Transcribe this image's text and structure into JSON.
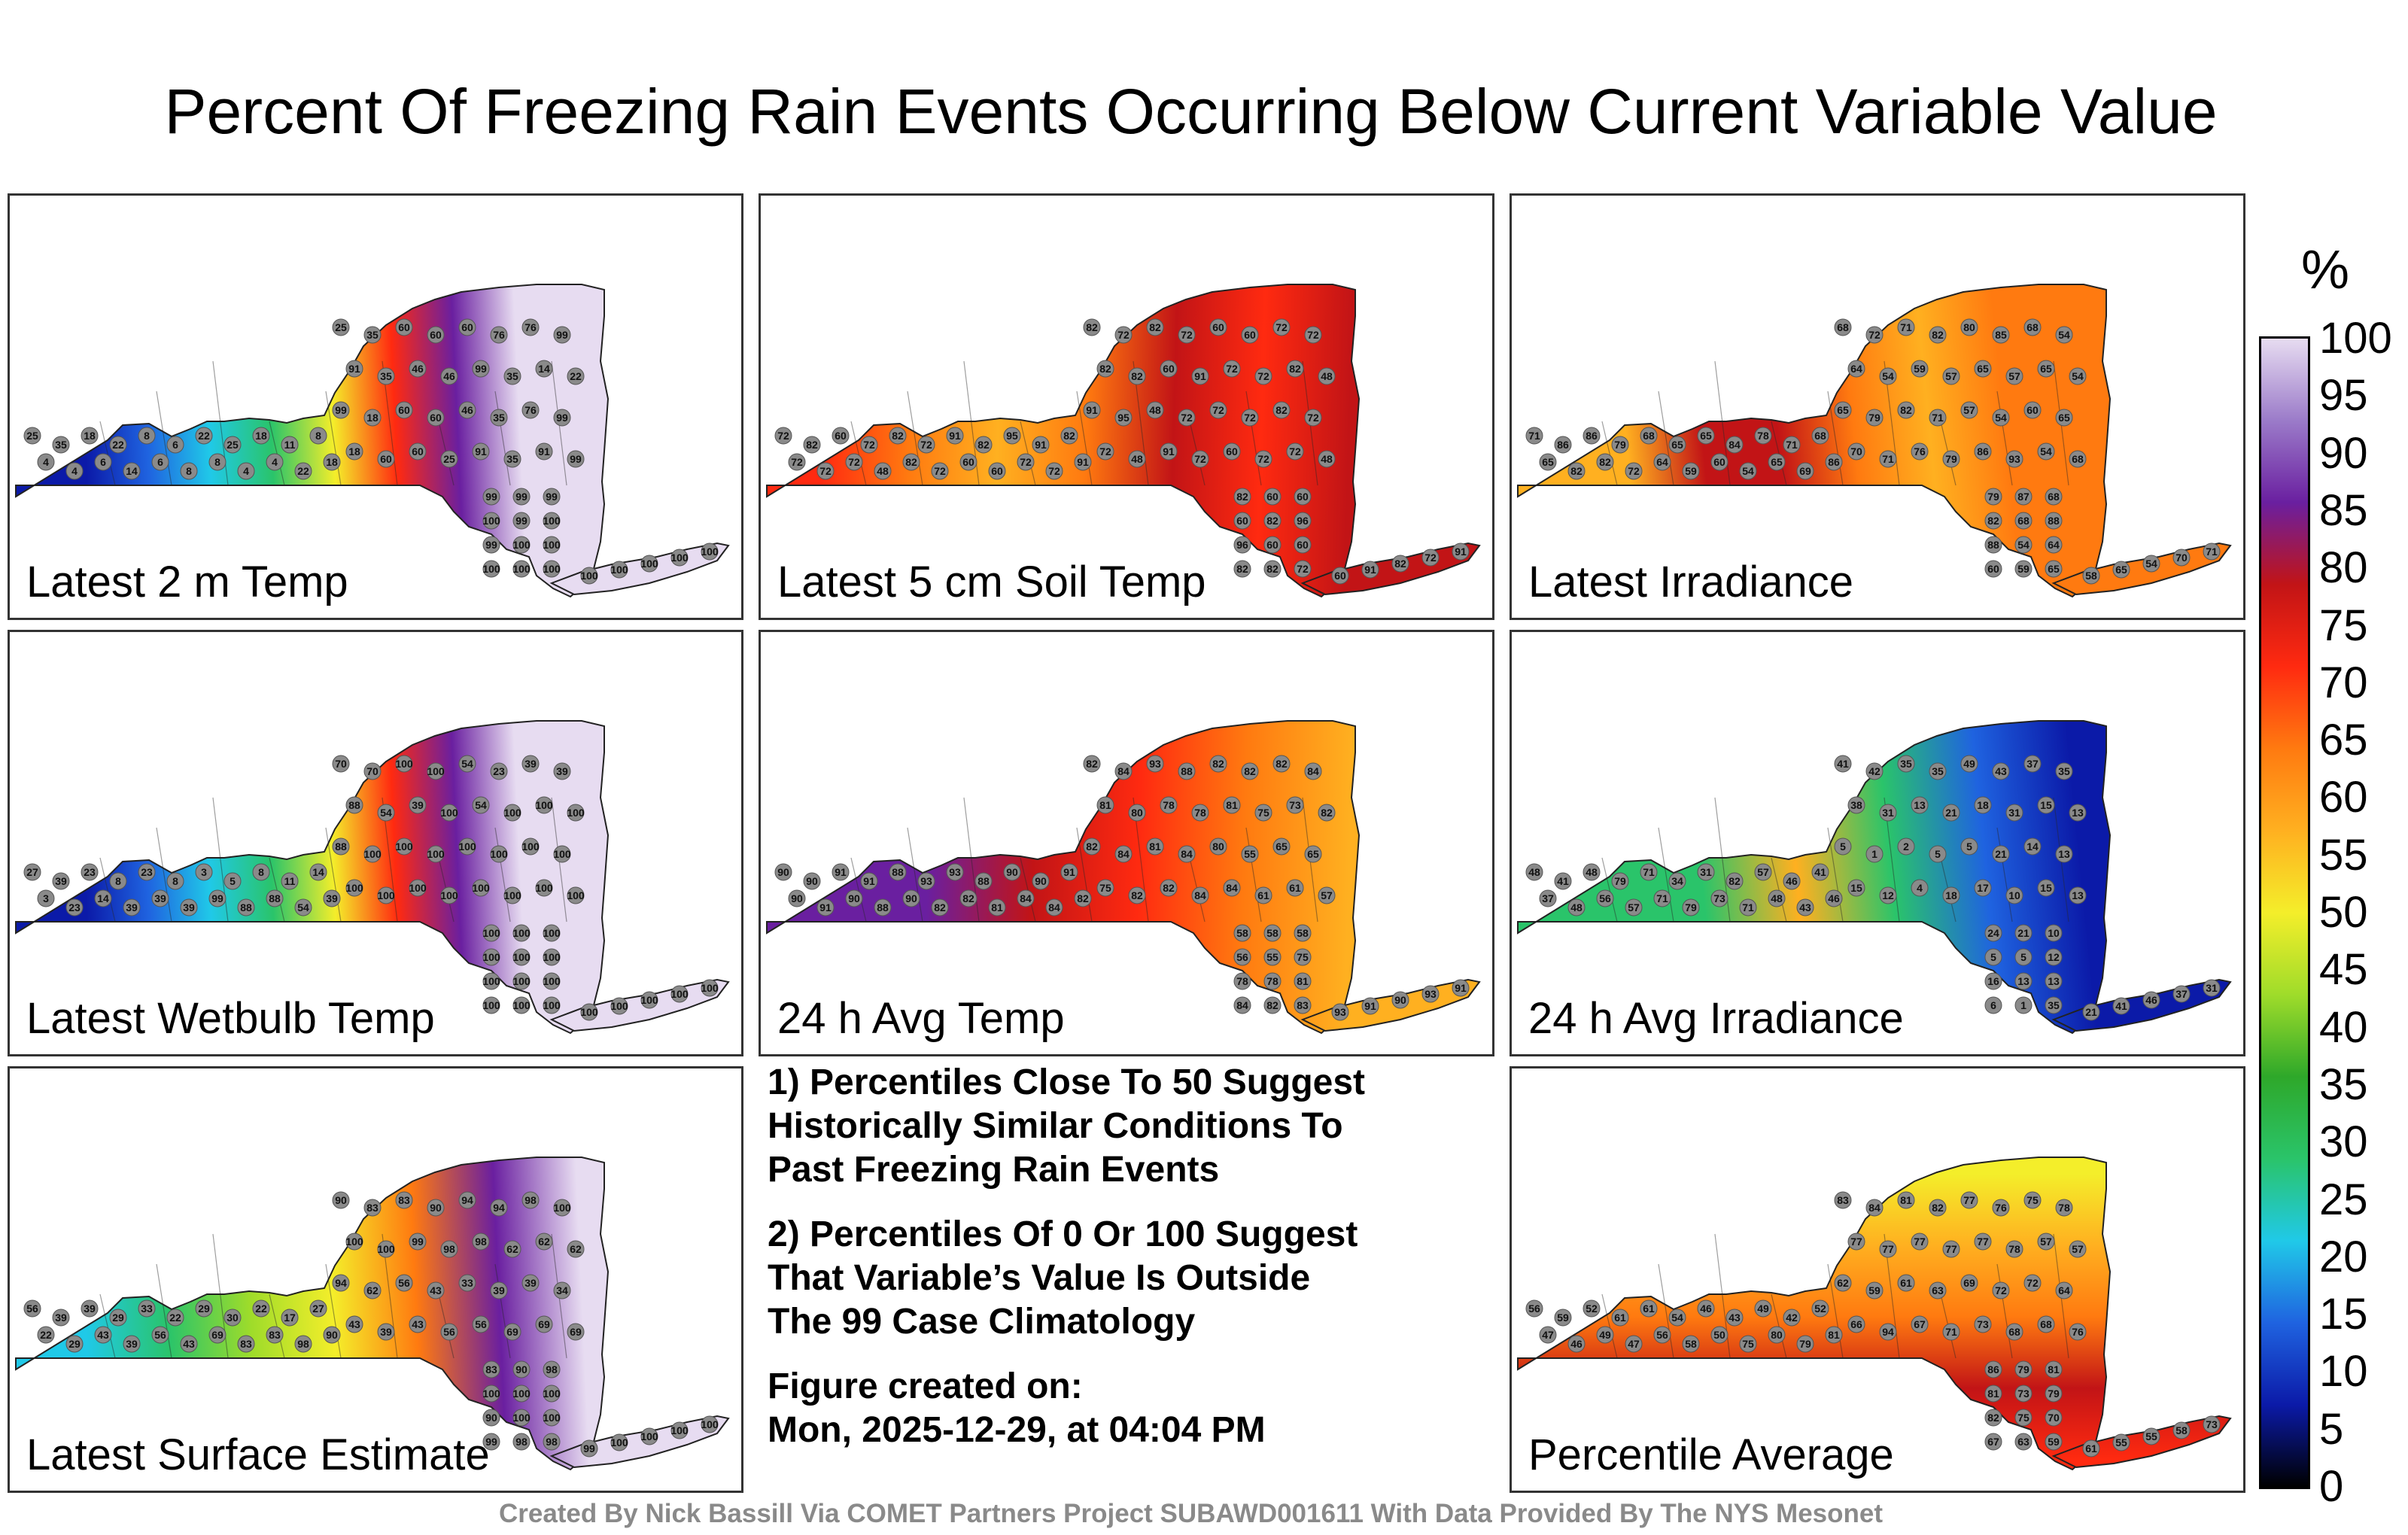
{
  "title": "Percent Of Freezing Rain Events Occurring Below Current Variable Value",
  "panels": [
    {
      "label": "Latest 2 m Temp",
      "stations": [
        "25",
        "35",
        "18",
        "22",
        "8",
        "6",
        "22",
        "25",
        "18",
        "11",
        "8",
        "4",
        "4",
        "6",
        "14",
        "6",
        "8",
        "8",
        "4",
        "4",
        "22",
        "18",
        "25",
        "35",
        "60",
        "60",
        "60",
        "76",
        "76",
        "99",
        "91",
        "35",
        "46",
        "46",
        "99",
        "35",
        "14",
        "22",
        "99",
        "18",
        "60",
        "60",
        "46",
        "35",
        "76",
        "99",
        "18",
        "60",
        "60",
        "25",
        "91",
        "35",
        "91",
        "99",
        "99",
        "99",
        "99",
        "100",
        "99",
        "100",
        "99",
        "100",
        "100",
        "100",
        "100",
        "100",
        "100",
        "100",
        "100",
        "100",
        "100"
      ]
    },
    {
      "label": "Latest 5 cm Soil Temp",
      "stations": [
        "72",
        "82",
        "60",
        "72",
        "82",
        "72",
        "91",
        "82",
        "95",
        "91",
        "82",
        "72",
        "72",
        "72",
        "48",
        "82",
        "72",
        "60",
        "60",
        "72",
        "72",
        "91",
        "82",
        "72",
        "82",
        "72",
        "60",
        "60",
        "72",
        "72",
        "82",
        "82",
        "60",
        "91",
        "72",
        "72",
        "82",
        "48",
        "91",
        "95",
        "48",
        "72",
        "72",
        "72",
        "82",
        "72",
        "72",
        "48",
        "91",
        "72",
        "60",
        "72",
        "72",
        "48",
        "82",
        "60",
        "60",
        "60",
        "82",
        "96",
        "96",
        "60",
        "60",
        "82",
        "82",
        "72",
        "60",
        "91",
        "82",
        "72",
        "91"
      ]
    },
    {
      "label": "Latest Irradiance",
      "stations": [
        "71",
        "86",
        "86",
        "79",
        "68",
        "65",
        "65",
        "84",
        "78",
        "71",
        "68",
        "65",
        "82",
        "82",
        "72",
        "64",
        "59",
        "60",
        "54",
        "65",
        "69",
        "86",
        "68",
        "72",
        "71",
        "82",
        "80",
        "85",
        "68",
        "54",
        "64",
        "54",
        "59",
        "57",
        "65",
        "57",
        "65",
        "54",
        "65",
        "79",
        "82",
        "71",
        "57",
        "54",
        "60",
        "65",
        "70",
        "71",
        "76",
        "79",
        "86",
        "93",
        "54",
        "68",
        "79",
        "87",
        "68",
        "82",
        "68",
        "88",
        "88",
        "54",
        "64",
        "60",
        "59",
        "65",
        "58",
        "65",
        "54",
        "70",
        "71"
      ]
    },
    {
      "label": "Latest Wetbulb Temp",
      "stations": [
        "27",
        "39",
        "23",
        "8",
        "23",
        "8",
        "3",
        "5",
        "8",
        "11",
        "14",
        "3",
        "23",
        "14",
        "39",
        "39",
        "39",
        "99",
        "88",
        "88",
        "54",
        "39",
        "70",
        "70",
        "100",
        "100",
        "54",
        "23",
        "39",
        "39",
        "88",
        "54",
        "39",
        "100",
        "54",
        "100",
        "100",
        "100",
        "88",
        "100",
        "100",
        "100",
        "100",
        "100",
        "100",
        "100",
        "100",
        "100",
        "100",
        "100",
        "100",
        "100",
        "100",
        "100",
        "100",
        "100",
        "100",
        "100",
        "100",
        "100",
        "100",
        "100",
        "100",
        "100",
        "100",
        "100",
        "100",
        "100",
        "100",
        "100",
        "100"
      ]
    },
    {
      "label": "24 h Avg Temp",
      "stations": [
        "90",
        "90",
        "91",
        "91",
        "88",
        "93",
        "93",
        "88",
        "90",
        "90",
        "91",
        "90",
        "91",
        "90",
        "88",
        "90",
        "82",
        "82",
        "81",
        "84",
        "84",
        "82",
        "82",
        "84",
        "93",
        "88",
        "82",
        "82",
        "82",
        "84",
        "81",
        "80",
        "78",
        "78",
        "81",
        "75",
        "73",
        "82",
        "82",
        "84",
        "81",
        "84",
        "80",
        "55",
        "65",
        "65",
        "75",
        "82",
        "82",
        "84",
        "84",
        "61",
        "61",
        "57",
        "58",
        "58",
        "58",
        "56",
        "55",
        "75",
        "78",
        "78",
        "81",
        "84",
        "82",
        "83",
        "93",
        "91",
        "90",
        "93",
        "91"
      ]
    },
    {
      "label": "24 h Avg Irradiance",
      "stations": [
        "48",
        "41",
        "48",
        "79",
        "71",
        "34",
        "31",
        "82",
        "57",
        "46",
        "41",
        "37",
        "48",
        "56",
        "57",
        "71",
        "79",
        "73",
        "71",
        "48",
        "43",
        "46",
        "41",
        "42",
        "35",
        "35",
        "49",
        "43",
        "37",
        "35",
        "38",
        "31",
        "13",
        "21",
        "18",
        "31",
        "15",
        "13",
        "5",
        "1",
        "2",
        "5",
        "5",
        "21",
        "14",
        "13",
        "15",
        "12",
        "4",
        "18",
        "17",
        "10",
        "15",
        "13",
        "24",
        "21",
        "10",
        "5",
        "5",
        "12",
        "16",
        "13",
        "13",
        "6",
        "1",
        "35",
        "21",
        "41",
        "46",
        "37",
        "31"
      ]
    },
    {
      "label": "Latest Surface Estimate",
      "stations": [
        "56",
        "39",
        "39",
        "29",
        "33",
        "22",
        "29",
        "30",
        "22",
        "17",
        "27",
        "22",
        "29",
        "43",
        "39",
        "56",
        "43",
        "69",
        "83",
        "83",
        "98",
        "90",
        "90",
        "83",
        "83",
        "90",
        "94",
        "94",
        "98",
        "100",
        "100",
        "100",
        "99",
        "98",
        "98",
        "62",
        "62",
        "62",
        "94",
        "62",
        "56",
        "43",
        "33",
        "39",
        "39",
        "34",
        "43",
        "39",
        "43",
        "56",
        "56",
        "69",
        "69",
        "69",
        "83",
        "90",
        "98",
        "100",
        "100",
        "100",
        "90",
        "100",
        "100",
        "99",
        "98",
        "98",
        "99",
        "100",
        "100",
        "100",
        "100"
      ]
    },
    {
      "label": "Percentile Average",
      "stations": [
        "56",
        "59",
        "52",
        "61",
        "61",
        "54",
        "46",
        "43",
        "49",
        "42",
        "52",
        "47",
        "46",
        "49",
        "47",
        "56",
        "58",
        "50",
        "75",
        "80",
        "79",
        "81",
        "83",
        "84",
        "81",
        "82",
        "77",
        "76",
        "75",
        "78",
        "77",
        "77",
        "77",
        "77",
        "77",
        "78",
        "57",
        "57",
        "62",
        "59",
        "61",
        "63",
        "69",
        "72",
        "72",
        "64",
        "66",
        "94",
        "67",
        "71",
        "73",
        "68",
        "68",
        "76",
        "86",
        "79",
        "81",
        "81",
        "73",
        "79",
        "82",
        "75",
        "70",
        "67",
        "63",
        "59",
        "61",
        "55",
        "55",
        "58",
        "73"
      ]
    }
  ],
  "notes": [
    [
      "1) Percentiles Close To 50 Suggest",
      "Historically Similar Conditions To",
      "Past Freezing Rain Events"
    ],
    [
      "2) Percentiles Of 0 Or 100 Suggest",
      "That Variable’s Value Is Outside",
      "The 99 Case Climatology"
    ]
  ],
  "created_label": "Figure created on:",
  "created_value": "Mon, 2025-12-29, at 04:04 PM",
  "credit": "Created By Nick Bassill Via COMET Partners Project SUBAWD001611 With Data Provided By The NYS Mesonet",
  "colorbar": {
    "unit": "%",
    "ticks": [
      "100",
      "95",
      "90",
      "85",
      "80",
      "75",
      "70",
      "65",
      "60",
      "55",
      "50",
      "45",
      "40",
      "35",
      "30",
      "25",
      "20",
      "15",
      "10",
      "5",
      "0"
    ],
    "stops": [
      "#000000",
      "#0b1aa8",
      "#1f63e0",
      "#20c9e8",
      "#2ac46a",
      "#2ea82a",
      "#9fdc2a",
      "#f4ee2a",
      "#ffb020",
      "#ff7a10",
      "#ff2a10",
      "#c21416",
      "#6a1fa0",
      "#9b7bc9",
      "#e7dcf1"
    ]
  }
}
